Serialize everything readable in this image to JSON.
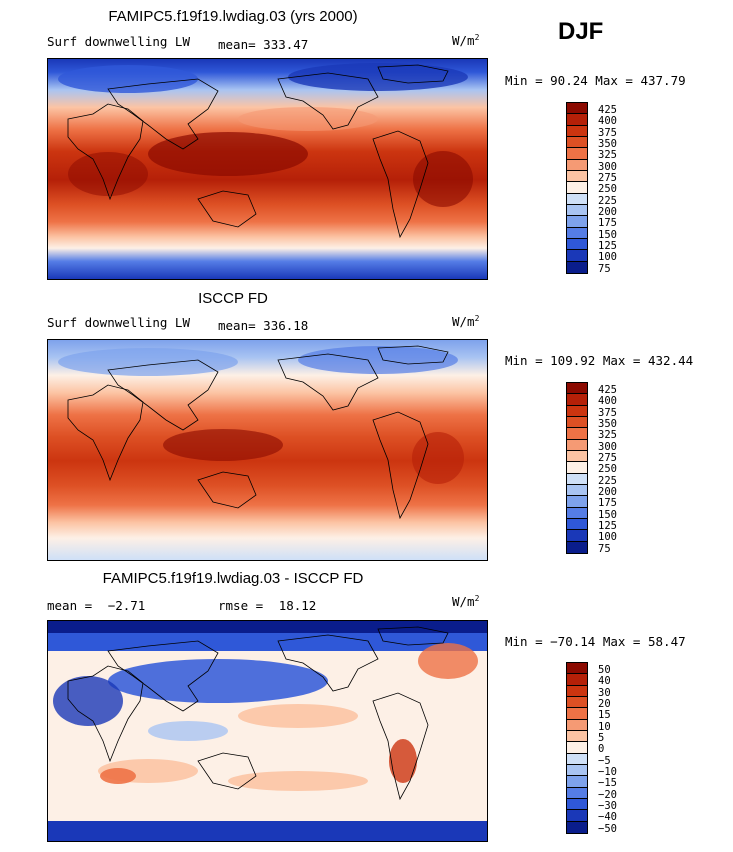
{
  "season": "DJF",
  "panels": [
    {
      "title": "FAMIPC5.f19f19.lwdiag.03 (yrs 2000)",
      "left_label": "Surf downwelling LW",
      "stat1_label": "mean=",
      "stat1_value": "333.47",
      "stat2_label": "",
      "stat2_value": "",
      "units": "W/m",
      "units_exp": "2",
      "minmax": "Min =  90.24 Max = 437.79",
      "colorbar": {
        "colors": [
          "#8b0a00",
          "#b52008",
          "#cc3510",
          "#dd5024",
          "#ee7246",
          "#f59a74",
          "#fcc4a4",
          "#fdf0e6",
          "#cfe0f7",
          "#a9c4f2",
          "#7ea2ec",
          "#557de6",
          "#2f58d8",
          "#1a38b8",
          "#0a1d8c"
        ],
        "ticks": [
          "425",
          "400",
          "375",
          "350",
          "325",
          "300",
          "275",
          "250",
          "225",
          "200",
          "175",
          "150",
          "125",
          "100",
          "75"
        ]
      }
    },
    {
      "title": "ISCCP FD",
      "left_label": "Surf downwelling LW",
      "stat1_label": "mean=",
      "stat1_value": "336.18",
      "stat2_label": "",
      "stat2_value": "",
      "units": "W/m",
      "units_exp": "2",
      "minmax": "Min = 109.92 Max = 432.44",
      "colorbar": {
        "colors": [
          "#8b0a00",
          "#b52008",
          "#cc3510",
          "#dd5024",
          "#ee7246",
          "#f59a74",
          "#fcc4a4",
          "#fdf0e6",
          "#cfe0f7",
          "#a9c4f2",
          "#7ea2ec",
          "#557de6",
          "#2f58d8",
          "#1a38b8",
          "#0a1d8c"
        ],
        "ticks": [
          "425",
          "400",
          "375",
          "350",
          "325",
          "300",
          "275",
          "250",
          "225",
          "200",
          "175",
          "150",
          "125",
          "100",
          "75"
        ]
      }
    },
    {
      "title": "FAMIPC5.f19f19.lwdiag.03 - ISCCP FD",
      "left_label": "",
      "stat1_label": "mean =",
      "stat1_value": "−2.71",
      "stat2_label": "rmse =",
      "stat2_value": "18.12",
      "units": "W/m",
      "units_exp": "2",
      "minmax": "Min = −70.14 Max =  58.47",
      "colorbar": {
        "colors": [
          "#8b0a00",
          "#b52008",
          "#cc3510",
          "#dd5024",
          "#ee7246",
          "#f59a74",
          "#fcc4a4",
          "#fdf0e6",
          "#cfe0f7",
          "#a9c4f2",
          "#7ea2ec",
          "#557de6",
          "#2f58d8",
          "#1a38b8",
          "#0a1d8c"
        ],
        "ticks": [
          "50",
          "40",
          "30",
          "20",
          "15",
          "10",
          "5",
          "0",
          "−5",
          "−10",
          "−15",
          "−20",
          "−30",
          "−40",
          "−50"
        ]
      }
    }
  ]
}
